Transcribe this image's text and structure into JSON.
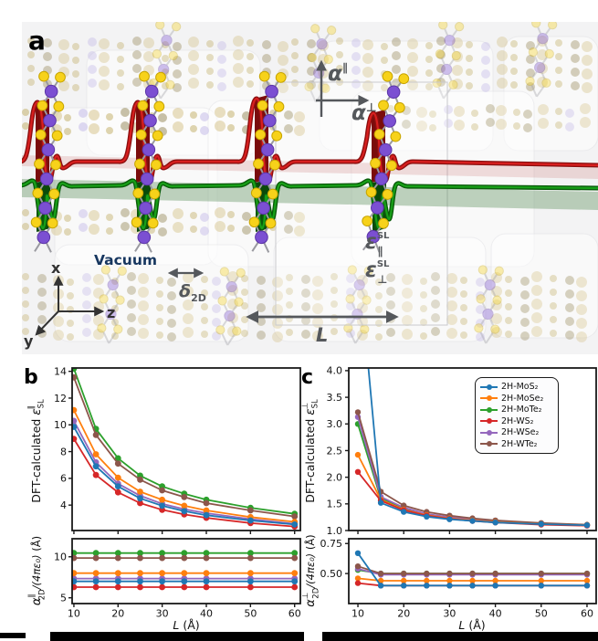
{
  "panel_a": {
    "label": "a",
    "vacuum_label": "Vacuum",
    "alpha_parallel": {
      "base": "α",
      "sup": "∥"
    },
    "alpha_perpendicular": {
      "base": "α",
      "sup": "⊥"
    },
    "epsilon_parallel": {
      "base": "ε",
      "sup": "SL",
      "sub": "∥"
    },
    "epsilon_perpendicular": {
      "base": "ε",
      "sup": "SL",
      "sub": "⊥"
    },
    "delta_2d": {
      "base": "δ",
      "sub": "2D"
    },
    "supercell_length_label": "L",
    "axis_labels": {
      "x": "x",
      "y": "y",
      "z": "z"
    }
  },
  "panel_b": {
    "label": "b"
  },
  "panel_c": {
    "label": "c"
  },
  "legend": {
    "items": [
      {
        "label": "2H-MoS₂",
        "color": "#1f77b4"
      },
      {
        "label": "2H-MoSe₂",
        "color": "#ff7f0e"
      },
      {
        "label": "2H-MoTe₂",
        "color": "#2ca02c"
      },
      {
        "label": "2H-WS₂",
        "color": "#d62728"
      },
      {
        "label": "2H-WSe₂",
        "color": "#9467bd"
      },
      {
        "label": "2H-WTe₂",
        "color": "#8c564b"
      }
    ]
  },
  "chart_data": [
    {
      "id": "b-top",
      "type": "line",
      "panel": "b",
      "position": "top",
      "title": "",
      "xlabel": "",
      "ylabel": "DFT-calculated ε∥SL",
      "ylabel_parts": {
        "prefix": "DFT-calculated ",
        "symbol": "ε",
        "sub": "SL",
        "sup": "∥"
      },
      "x": [
        10,
        15,
        20,
        25,
        30,
        35,
        40,
        50,
        60
      ],
      "xlim": [
        9.6,
        61.3
      ],
      "ylim": [
        2.1,
        14.25
      ],
      "xticks": [
        10,
        20,
        30,
        40,
        50,
        60
      ],
      "xtick_labels": [
        "10",
        "20",
        "30",
        "40",
        "50",
        "60"
      ],
      "show_xtick_labels": false,
      "yticks": [
        4,
        6,
        8,
        10,
        12,
        14
      ],
      "ytick_labels": [
        "4",
        "6",
        "8",
        "10",
        "12",
        "14"
      ],
      "grid": false,
      "series": [
        {
          "name": "2H-MoS₂",
          "values": [
            9.85,
            6.9,
            5.4,
            4.5,
            3.95,
            3.55,
            3.25,
            2.85,
            2.55
          ]
        },
        {
          "name": "2H-MoSe₂",
          "values": [
            11.1,
            7.8,
            6.05,
            5.0,
            4.4,
            3.95,
            3.6,
            3.1,
            2.75
          ]
        },
        {
          "name": "2H-MoTe₂",
          "values": [
            14.2,
            9.7,
            7.5,
            6.2,
            5.4,
            4.85,
            4.4,
            3.8,
            3.35
          ]
        },
        {
          "name": "2H-WS₂",
          "values": [
            8.95,
            6.25,
            4.95,
            4.15,
            3.65,
            3.3,
            3.05,
            2.65,
            2.4
          ]
        },
        {
          "name": "2H-WSe₂",
          "values": [
            10.3,
            7.2,
            5.6,
            4.7,
            4.1,
            3.7,
            3.4,
            2.95,
            2.6
          ]
        },
        {
          "name": "2H-WTe₂",
          "values": [
            13.55,
            9.25,
            7.1,
            5.9,
            5.1,
            4.6,
            4.15,
            3.6,
            3.15
          ]
        }
      ]
    },
    {
      "id": "b-bottom",
      "type": "line",
      "panel": "b",
      "position": "bottom",
      "title": "",
      "xlabel": "L (Å)",
      "xlabel_parts": {
        "main": "L",
        "unit": " (Å)"
      },
      "ylabel": "α∥2D/(4πε₀) (Å)",
      "ylabel_parts": {
        "symbol": "α",
        "sup": "∥",
        "sub": "2D",
        "frac": "/(4πε₀)",
        "unit": " (Å)"
      },
      "x": [
        10,
        15,
        20,
        25,
        30,
        35,
        40,
        50,
        60
      ],
      "xlim": [
        9.6,
        61.3
      ],
      "ylim": [
        4.3,
        12.2
      ],
      "xticks": [
        10,
        20,
        30,
        40,
        50,
        60
      ],
      "xtick_labels": [
        "10",
        "20",
        "30",
        "40",
        "50",
        "60"
      ],
      "show_xtick_labels": true,
      "yticks": [
        5,
        10
      ],
      "ytick_labels": [
        "5",
        "10"
      ],
      "grid": false,
      "series": [
        {
          "name": "2H-MoS₂",
          "values": [
            7.0,
            7.0,
            7.0,
            7.0,
            7.0,
            7.0,
            7.0,
            7.0,
            7.0
          ]
        },
        {
          "name": "2H-MoSe₂",
          "values": [
            8.0,
            8.0,
            8.0,
            8.0,
            8.0,
            8.0,
            8.0,
            8.0,
            8.0
          ]
        },
        {
          "name": "2H-MoTe₂",
          "values": [
            10.45,
            10.45,
            10.45,
            10.45,
            10.45,
            10.45,
            10.45,
            10.45,
            10.45
          ]
        },
        {
          "name": "2H-WS₂",
          "values": [
            6.3,
            6.3,
            6.3,
            6.3,
            6.3,
            6.3,
            6.3,
            6.3,
            6.3
          ]
        },
        {
          "name": "2H-WSe₂",
          "values": [
            7.35,
            7.35,
            7.35,
            7.35,
            7.35,
            7.35,
            7.35,
            7.35,
            7.35
          ]
        },
        {
          "name": "2H-WTe₂",
          "values": [
            9.85,
            9.85,
            9.85,
            9.85,
            9.85,
            9.85,
            9.85,
            9.85,
            9.85
          ]
        }
      ]
    },
    {
      "id": "c-top",
      "type": "line",
      "panel": "c",
      "position": "top",
      "title": "",
      "xlabel": "",
      "ylabel": "DFT-calculated ε⊥SL",
      "ylabel_parts": {
        "prefix": "DFT-calculated ",
        "symbol": "ε",
        "sub": "SL",
        "sup": "⊥"
      },
      "x": [
        10,
        15,
        20,
        25,
        30,
        35,
        40,
        50,
        60
      ],
      "xlim": [
        8.0,
        62.0
      ],
      "ylim": [
        1.0,
        4.05
      ],
      "xticks": [
        10,
        20,
        30,
        40,
        50,
        60
      ],
      "xtick_labels": [
        "10",
        "20",
        "30",
        "40",
        "50",
        "60"
      ],
      "show_xtick_labels": false,
      "yticks": [
        1.0,
        1.5,
        2.0,
        2.5,
        3.0,
        3.5,
        4.0
      ],
      "ytick_labels": [
        "1.0",
        "1.5",
        "2.0",
        "2.5",
        "3.0",
        "3.5",
        "4.0"
      ],
      "grid": false,
      "legend_position": "upper right",
      "series": [
        {
          "name": "2H-MoS₂",
          "values": [
            6.2,
            1.52,
            1.35,
            1.26,
            1.21,
            1.18,
            1.15,
            1.12,
            1.1
          ]
        },
        {
          "name": "2H-MoSe₂",
          "values": [
            2.42,
            1.58,
            1.39,
            1.29,
            1.23,
            1.19,
            1.16,
            1.12,
            1.1
          ]
        },
        {
          "name": "2H-MoTe₂",
          "values": [
            3.0,
            1.6,
            1.41,
            1.3,
            1.24,
            1.2,
            1.17,
            1.13,
            1.1
          ]
        },
        {
          "name": "2H-WS₂",
          "values": [
            2.1,
            1.56,
            1.38,
            1.28,
            1.22,
            1.18,
            1.15,
            1.11,
            1.09
          ]
        },
        {
          "name": "2H-WSe₂",
          "values": [
            3.13,
            1.63,
            1.43,
            1.31,
            1.25,
            1.21,
            1.17,
            1.13,
            1.1
          ]
        },
        {
          "name": "2H-WTe₂",
          "values": [
            3.22,
            1.73,
            1.47,
            1.35,
            1.28,
            1.23,
            1.19,
            1.14,
            1.11
          ]
        }
      ]
    },
    {
      "id": "c-bottom",
      "type": "line",
      "panel": "c",
      "position": "bottom",
      "title": "",
      "xlabel": "L (Å)",
      "xlabel_parts": {
        "main": "L",
        "unit": " (Å)"
      },
      "ylabel": "α⊥2D/(4πε₀) (Å)",
      "ylabel_parts": {
        "symbol": "α",
        "sup": "⊥",
        "sub": "2D",
        "frac": "/(4πε₀)",
        "unit": " (Å)"
      },
      "x": [
        10,
        15,
        20,
        25,
        30,
        35,
        40,
        50,
        60
      ],
      "xlim": [
        8.0,
        62.0
      ],
      "ylim": [
        0.25,
        0.79
      ],
      "xticks": [
        10,
        20,
        30,
        40,
        50,
        60
      ],
      "xtick_labels": [
        "10",
        "20",
        "30",
        "40",
        "50",
        "60"
      ],
      "show_xtick_labels": true,
      "yticks": [
        0.5,
        0.75
      ],
      "ytick_labels": [
        "0.50",
        "0.75"
      ],
      "grid": false,
      "series": [
        {
          "name": "2H-MoS₂",
          "values": [
            0.67,
            0.4,
            0.4,
            0.4,
            0.4,
            0.4,
            0.4,
            0.4,
            0.4
          ]
        },
        {
          "name": "2H-MoSe₂",
          "values": [
            0.46,
            0.44,
            0.44,
            0.44,
            0.44,
            0.44,
            0.44,
            0.44,
            0.44
          ]
        },
        {
          "name": "2H-MoTe₂",
          "values": [
            0.53,
            0.5,
            0.5,
            0.5,
            0.5,
            0.5,
            0.5,
            0.5,
            0.5
          ]
        },
        {
          "name": "2H-WS₂",
          "values": [
            0.42,
            0.4,
            0.4,
            0.4,
            0.4,
            0.4,
            0.4,
            0.4,
            0.4
          ]
        },
        {
          "name": "2H-WSe₂",
          "values": [
            0.54,
            0.49,
            0.49,
            0.49,
            0.49,
            0.49,
            0.49,
            0.49,
            0.49
          ]
        },
        {
          "name": "2H-WTe₂",
          "values": [
            0.56,
            0.5,
            0.5,
            0.5,
            0.5,
            0.5,
            0.5,
            0.5,
            0.5
          ]
        }
      ]
    }
  ]
}
